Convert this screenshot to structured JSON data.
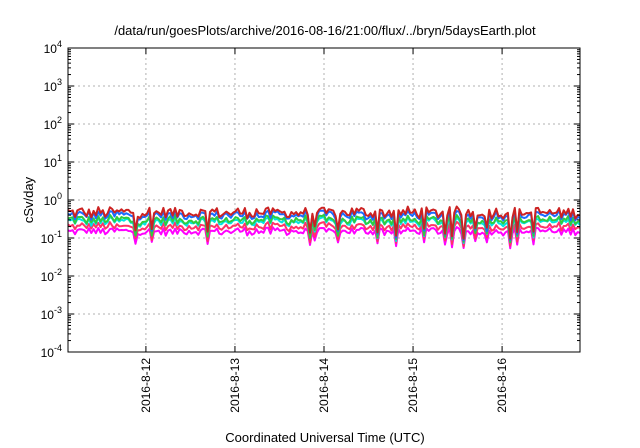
{
  "chart_data": {
    "type": "line",
    "title": "/data/run/goesPlots/archive/2016-08-16/21:00/flux/../bryn/5daysEarth.plot",
    "xlabel": "Coordinated Universal Time (UTC)",
    "ylabel": "cSv/day",
    "x_range": [
      "2016-08-11T03:00",
      "2016-08-16T21:00"
    ],
    "x_ticks": [
      "2016-8-12",
      "2016-8-13",
      "2016-8-14",
      "2016-8-15",
      "2016-8-16"
    ],
    "y_scale": "log",
    "ylim": [
      0.0001,
      10000
    ],
    "y_ticks": [
      {
        "base": "10",
        "exp": "4"
      },
      {
        "base": "10",
        "exp": "3"
      },
      {
        "base": "10",
        "exp": "2"
      },
      {
        "base": "10",
        "exp": "1"
      },
      {
        "base": "10",
        "exp": "0"
      },
      {
        "base": "10",
        "exp": "-1"
      },
      {
        "base": "10",
        "exp": "-2"
      },
      {
        "base": "10",
        "exp": "-3"
      },
      {
        "base": "10",
        "exp": "-4"
      }
    ],
    "grid": true,
    "series": [
      {
        "color": "#ff00ff",
        "approx_level": 0.15
      },
      {
        "color": "#ff3366",
        "approx_level": 0.2
      },
      {
        "color": "#00e5e5",
        "approx_level": 0.27
      },
      {
        "color": "#2ecc40",
        "approx_level": 0.3
      },
      {
        "color": "#1a6cff",
        "approx_level": 0.4
      },
      {
        "color": "#cc2222",
        "approx_level": 0.47
      }
    ]
  }
}
